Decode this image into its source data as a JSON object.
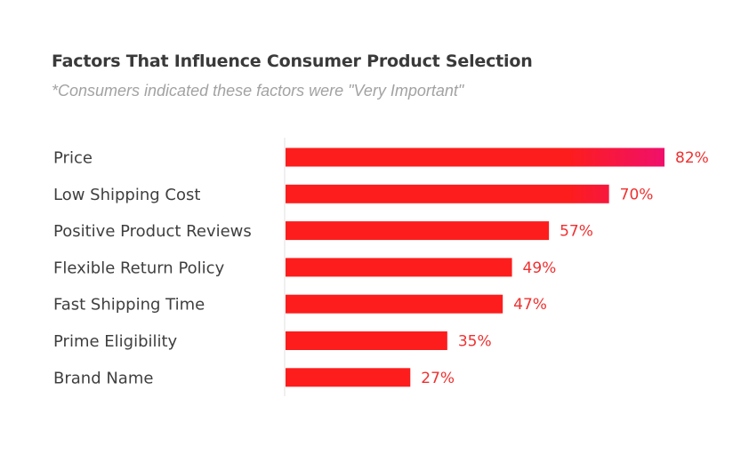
{
  "chart_data": {
    "type": "bar",
    "orientation": "horizontal",
    "title": "Factors That Influence Consumer Product Selection",
    "subtitle": "*Consumers indicated these factors were \"Very Important\"",
    "categories": [
      "Price",
      "Low Shipping Cost",
      "Positive Product Reviews",
      "Flexible Return Policy",
      "Fast Shipping Time",
      "Prime Eligibility",
      "Brand Name"
    ],
    "values": [
      82,
      70,
      57,
      49,
      47,
      35,
      27
    ],
    "value_labels": [
      "82%",
      "70%",
      "57%",
      "49%",
      "47%",
      "35%",
      "27%"
    ],
    "unit": "%",
    "xlim": [
      0,
      100
    ],
    "grid": false,
    "legend": "none",
    "colors": {
      "bar_start": "#fd1d1d",
      "bar_end": "#f0106a",
      "value_label": "#f03030",
      "axis_line": "#e0e0e0"
    }
  }
}
